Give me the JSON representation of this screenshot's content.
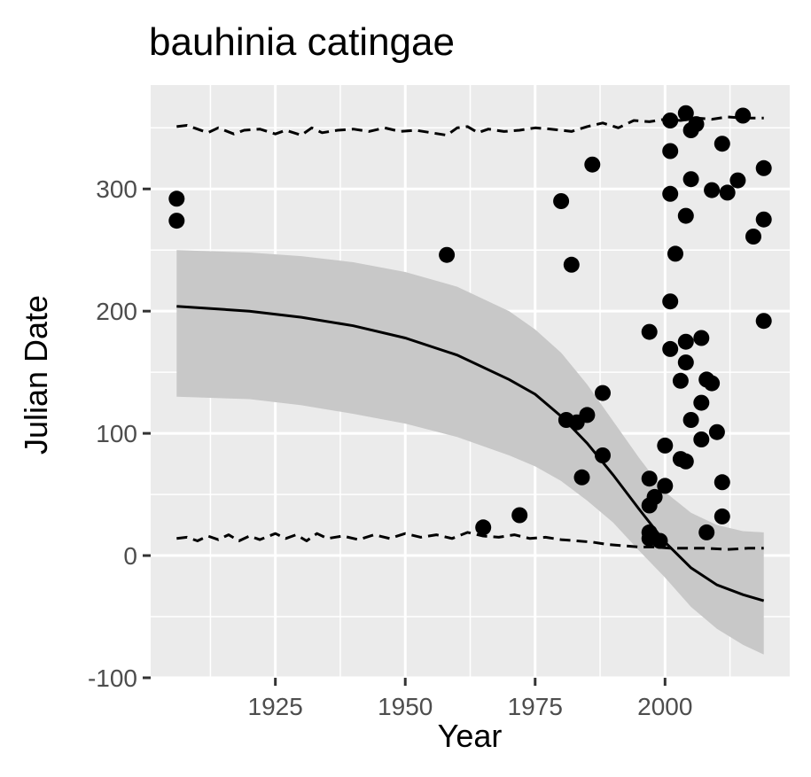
{
  "chart_data": {
    "type": "scatter",
    "title": "bauhinia catingae",
    "xlabel": "Year",
    "ylabel": "Julian Date",
    "xlim": [
      1901,
      2024
    ],
    "ylim": [
      -100,
      385
    ],
    "x_ticks": [
      1925,
      1950,
      1975,
      2000
    ],
    "x_tick_labels": [
      "1925",
      "1950",
      "1975",
      "2000"
    ],
    "y_ticks": [
      -100,
      0,
      100,
      200,
      300
    ],
    "y_tick_labels": [
      "-100",
      "0",
      "100",
      "200",
      "300"
    ],
    "grid": true,
    "legend": "none",
    "colors": {
      "panel_background": "#ebebeb",
      "grid_major": "#ffffff",
      "ribbon": "#c8c8c8",
      "line": "#000000",
      "points": "#000000",
      "tick_label": "#4d4d4d"
    },
    "series": [
      {
        "kind": "points",
        "points": [
          [
            1906,
            292
          ],
          [
            1906,
            274
          ],
          [
            1958,
            246
          ],
          [
            1965,
            23
          ],
          [
            1972,
            33
          ],
          [
            1980,
            290
          ],
          [
            1981,
            111
          ],
          [
            1982,
            238
          ],
          [
            1983,
            109
          ],
          [
            1984,
            64
          ],
          [
            1985,
            115
          ],
          [
            1986,
            320
          ],
          [
            1988,
            133
          ],
          [
            1988,
            82
          ],
          [
            1997,
            183
          ],
          [
            1997,
            63
          ],
          [
            1997,
            41
          ],
          [
            1997,
            19
          ],
          [
            1997,
            14
          ],
          [
            1998,
            48
          ],
          [
            1999,
            12
          ],
          [
            2000,
            90
          ],
          [
            2000,
            57
          ],
          [
            2001,
            331
          ],
          [
            2001,
            296
          ],
          [
            2001,
            356
          ],
          [
            2001,
            208
          ],
          [
            2001,
            169
          ],
          [
            2002,
            247
          ],
          [
            2003,
            143
          ],
          [
            2003,
            79
          ],
          [
            2004,
            362
          ],
          [
            2004,
            278
          ],
          [
            2004,
            175
          ],
          [
            2004,
            158
          ],
          [
            2004,
            77
          ],
          [
            2005,
            348
          ],
          [
            2005,
            308
          ],
          [
            2005,
            111
          ],
          [
            2006,
            353
          ],
          [
            2007,
            178
          ],
          [
            2007,
            125
          ],
          [
            2007,
            95
          ],
          [
            2008,
            144
          ],
          [
            2008,
            19
          ],
          [
            2009,
            299
          ],
          [
            2009,
            141
          ],
          [
            2010,
            101
          ],
          [
            2011,
            337
          ],
          [
            2011,
            60
          ],
          [
            2011,
            32
          ],
          [
            2012,
            297
          ],
          [
            2014,
            307
          ],
          [
            2015,
            360
          ],
          [
            2017,
            261
          ],
          [
            2019,
            317
          ],
          [
            2019,
            275
          ],
          [
            2019,
            192
          ]
        ]
      },
      {
        "kind": "line",
        "points": [
          [
            1906,
            204
          ],
          [
            1920,
            200
          ],
          [
            1930,
            195
          ],
          [
            1940,
            188
          ],
          [
            1950,
            178
          ],
          [
            1960,
            164
          ],
          [
            1970,
            144
          ],
          [
            1975,
            132
          ],
          [
            1980,
            114
          ],
          [
            1985,
            92
          ],
          [
            1990,
            66
          ],
          [
            1995,
            38
          ],
          [
            2000,
            11
          ],
          [
            2005,
            -10
          ],
          [
            2010,
            -24
          ],
          [
            2015,
            -32
          ],
          [
            2019,
            -37
          ]
        ]
      },
      {
        "kind": "ribbon",
        "upper": [
          [
            1906,
            250
          ],
          [
            1920,
            248
          ],
          [
            1930,
            245
          ],
          [
            1940,
            240
          ],
          [
            1950,
            232
          ],
          [
            1960,
            220
          ],
          [
            1970,
            200
          ],
          [
            1975,
            185
          ],
          [
            1980,
            166
          ],
          [
            1985,
            140
          ],
          [
            1990,
            110
          ],
          [
            1995,
            80
          ],
          [
            2000,
            52
          ],
          [
            2005,
            35
          ],
          [
            2010,
            25
          ],
          [
            2015,
            20
          ],
          [
            2019,
            19
          ]
        ],
        "lower": [
          [
            1906,
            130
          ],
          [
            1920,
            128
          ],
          [
            1930,
            123
          ],
          [
            1940,
            116
          ],
          [
            1950,
            108
          ],
          [
            1960,
            97
          ],
          [
            1970,
            82
          ],
          [
            1975,
            73
          ],
          [
            1980,
            61
          ],
          [
            1985,
            45
          ],
          [
            1990,
            27
          ],
          [
            1995,
            4
          ],
          [
            2000,
            -18
          ],
          [
            2005,
            -42
          ],
          [
            2010,
            -60
          ],
          [
            2015,
            -73
          ],
          [
            2019,
            -81
          ]
        ]
      },
      {
        "kind": "dashed",
        "points": [
          [
            1906,
            351
          ],
          [
            1908,
            352
          ],
          [
            1910,
            349
          ],
          [
            1912,
            346
          ],
          [
            1914,
            350
          ],
          [
            1917,
            345
          ],
          [
            1919,
            348
          ],
          [
            1922,
            349
          ],
          [
            1925,
            345
          ],
          [
            1927,
            348
          ],
          [
            1930,
            344
          ],
          [
            1932,
            350
          ],
          [
            1934,
            346
          ],
          [
            1937,
            348
          ],
          [
            1940,
            349
          ],
          [
            1943,
            347
          ],
          [
            1946,
            350
          ],
          [
            1949,
            347
          ],
          [
            1952,
            348
          ],
          [
            1955,
            346
          ],
          [
            1958,
            344
          ],
          [
            1960,
            350
          ],
          [
            1962,
            351
          ],
          [
            1964,
            346
          ],
          [
            1966,
            349
          ],
          [
            1969,
            347
          ],
          [
            1972,
            348
          ],
          [
            1975,
            350
          ],
          [
            1978,
            349
          ],
          [
            1982,
            347
          ],
          [
            1985,
            351
          ],
          [
            1988,
            354
          ],
          [
            1991,
            350
          ],
          [
            1994,
            356
          ],
          [
            1997,
            355
          ],
          [
            2000,
            357
          ],
          [
            2003,
            356
          ],
          [
            2006,
            358
          ],
          [
            2009,
            357
          ],
          [
            2012,
            359
          ],
          [
            2015,
            358
          ],
          [
            2019,
            358
          ]
        ]
      },
      {
        "kind": "dashed",
        "points": [
          [
            1906,
            14
          ],
          [
            1908,
            15
          ],
          [
            1910,
            12
          ],
          [
            1912,
            16
          ],
          [
            1914,
            13
          ],
          [
            1916,
            17
          ],
          [
            1918,
            12
          ],
          [
            1920,
            16
          ],
          [
            1922,
            13
          ],
          [
            1925,
            18
          ],
          [
            1927,
            14
          ],
          [
            1929,
            17
          ],
          [
            1931,
            12
          ],
          [
            1933,
            18
          ],
          [
            1935,
            14
          ],
          [
            1938,
            16
          ],
          [
            1941,
            13
          ],
          [
            1944,
            17
          ],
          [
            1947,
            14
          ],
          [
            1950,
            18
          ],
          [
            1953,
            15
          ],
          [
            1956,
            17
          ],
          [
            1959,
            14
          ],
          [
            1962,
            19
          ],
          [
            1965,
            16
          ],
          [
            1968,
            15
          ],
          [
            1971,
            17
          ],
          [
            1974,
            14
          ],
          [
            1977,
            15
          ],
          [
            1980,
            13
          ],
          [
            1983,
            12
          ],
          [
            1986,
            11
          ],
          [
            1989,
            9
          ],
          [
            1992,
            8
          ],
          [
            1995,
            7
          ],
          [
            1998,
            7
          ],
          [
            2001,
            6
          ],
          [
            2004,
            6
          ],
          [
            2008,
            6
          ],
          [
            2012,
            5
          ],
          [
            2016,
            6
          ],
          [
            2019,
            6
          ]
        ]
      }
    ]
  }
}
